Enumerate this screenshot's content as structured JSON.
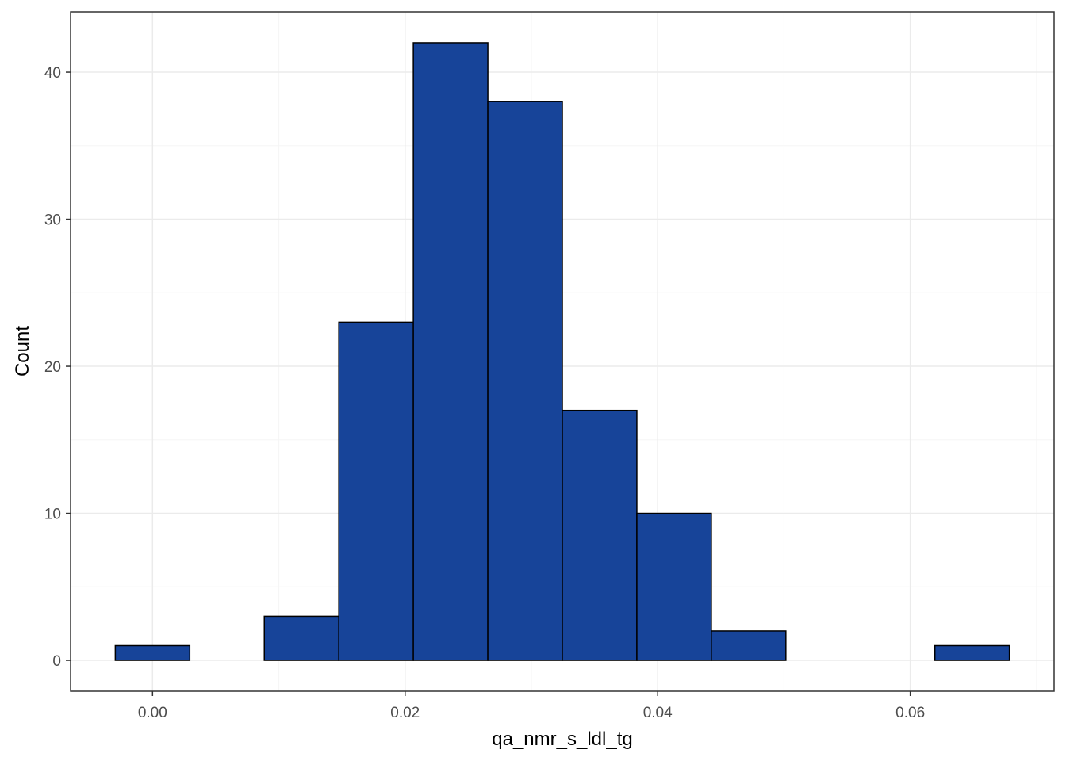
{
  "chart_data": {
    "type": "histogram",
    "title": "",
    "xlabel": "qa_nmr_s_ldl_tg",
    "ylabel": "Count",
    "bins": [
      {
        "x0": -0.00295,
        "x1": 0.00295,
        "count": 1
      },
      {
        "x0": 0.00295,
        "x1": 0.00885,
        "count": 0
      },
      {
        "x0": 0.00885,
        "x1": 0.01475,
        "count": 3
      },
      {
        "x0": 0.01475,
        "x1": 0.02065,
        "count": 23
      },
      {
        "x0": 0.02065,
        "x1": 0.02655,
        "count": 42
      },
      {
        "x0": 0.02655,
        "x1": 0.03245,
        "count": 38
      },
      {
        "x0": 0.03245,
        "x1": 0.03835,
        "count": 17
      },
      {
        "x0": 0.03835,
        "x1": 0.04425,
        "count": 10
      },
      {
        "x0": 0.04425,
        "x1": 0.05015,
        "count": 2
      },
      {
        "x0": 0.05015,
        "x1": 0.05605,
        "count": 0
      },
      {
        "x0": 0.05605,
        "x1": 0.06195,
        "count": 0
      },
      {
        "x0": 0.06195,
        "x1": 0.06785,
        "count": 1
      }
    ],
    "xlim": [
      -0.00649,
      0.07139
    ],
    "ylim": [
      -2.1,
      44.1
    ],
    "x_ticks": [
      0.0,
      0.02,
      0.04,
      0.06
    ],
    "x_tick_labels": [
      "0.00",
      "0.02",
      "0.04",
      "0.06"
    ],
    "y_ticks": [
      0,
      10,
      20,
      30,
      40
    ],
    "y_tick_labels": [
      "0",
      "10",
      "20",
      "30",
      "40"
    ],
    "grid": true,
    "legend": "none",
    "colors": {
      "bar_fill": "#174499",
      "bar_stroke": "#000000",
      "grid_major": "#ebebeb",
      "grid_minor": "#f5f5f5",
      "panel_border": "#333333",
      "tick_text": "#4d4d4d"
    }
  }
}
